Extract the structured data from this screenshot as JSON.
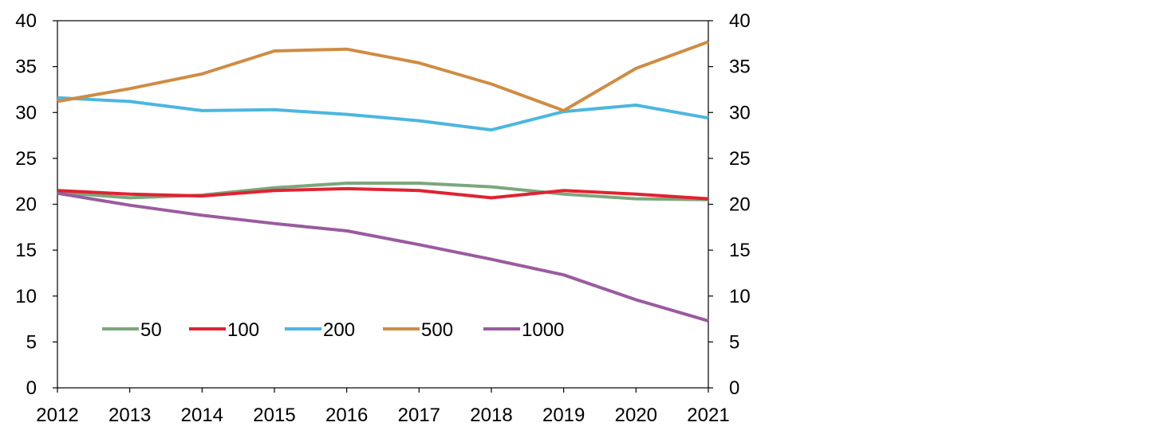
{
  "chart_data": {
    "type": "line",
    "x": [
      "2012",
      "2013",
      "2014",
      "2015",
      "2016",
      "2017",
      "2018",
      "2019",
      "2020",
      "2021"
    ],
    "ylim": [
      0,
      40
    ],
    "yticks": [
      0,
      5,
      10,
      15,
      20,
      25,
      30,
      35,
      40
    ],
    "y_axis_right": true,
    "grid": false,
    "legend_position": "bottom-left inside",
    "series": [
      {
        "name": "50",
        "color": "#7ba77c",
        "values": [
          21.3,
          20.7,
          21.0,
          21.8,
          22.3,
          22.3,
          21.9,
          21.1,
          20.6,
          20.5
        ]
      },
      {
        "name": "100",
        "color": "#e02232",
        "values": [
          21.5,
          21.1,
          20.9,
          21.5,
          21.7,
          21.5,
          20.7,
          21.5,
          21.1,
          20.6
        ]
      },
      {
        "name": "200",
        "color": "#4cb6e0",
        "values": [
          31.6,
          31.2,
          30.2,
          30.3,
          29.8,
          29.1,
          28.1,
          30.1,
          30.8,
          29.4
        ]
      },
      {
        "name": "500",
        "color": "#cf8c44",
        "values": [
          31.2,
          32.6,
          34.2,
          36.7,
          36.9,
          35.4,
          33.1,
          30.2,
          34.8,
          37.7
        ]
      },
      {
        "name": "1000",
        "color": "#9a5b9f",
        "values": [
          21.2,
          19.9,
          18.8,
          17.9,
          17.1,
          15.6,
          14.0,
          12.3,
          9.6,
          7.3
        ]
      }
    ]
  }
}
